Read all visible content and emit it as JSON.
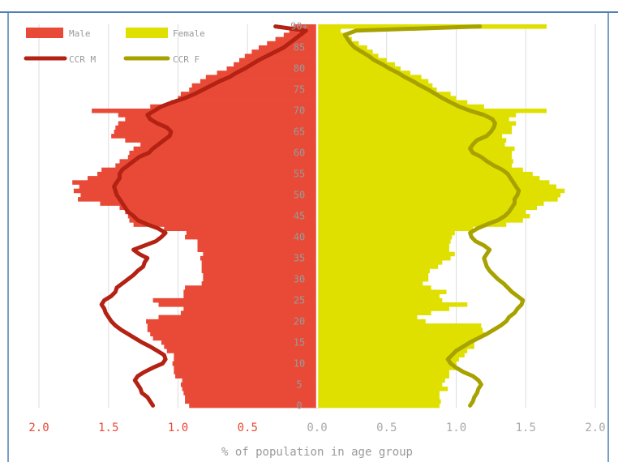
{
  "chart_data": {
    "type": "bar",
    "orientation": "horizontal-pyramid",
    "xlabel": "% of population in age group",
    "xlim": [
      0,
      2.0
    ],
    "x_ticks_left": [
      "2.0",
      "1.5",
      "1.0",
      "0.5",
      "0.0"
    ],
    "x_ticks_right": [
      "0.5",
      "1.0",
      "1.5",
      "2.0"
    ],
    "age_ticks": [
      "0",
      "5",
      "10",
      "15",
      "20",
      "25",
      "30",
      "35",
      "40",
      "45",
      "50",
      "55",
      "60",
      "65",
      "70",
      "75",
      "80",
      "85",
      "90+"
    ],
    "grid": true,
    "legend_position": "top-left",
    "legend": [
      {
        "key": "male",
        "label": "Male",
        "kind": "bar"
      },
      {
        "key": "female",
        "label": "Female",
        "kind": "bar"
      },
      {
        "key": "ccr_m",
        "label": "CCR M",
        "kind": "line"
      },
      {
        "key": "ccr_f",
        "label": "CCR F",
        "kind": "line"
      }
    ],
    "colors": {
      "male": "#e84a37",
      "female": "#dfe000",
      "ccr_m": "#b32212",
      "ccr_f": "#a7a200",
      "grid": "#dddddd",
      "left_ticks": "#e84a37",
      "right_ticks": "#a9a9a9",
      "center_line": "#ffffff",
      "frame": "#4f7fb5"
    },
    "ages": [
      0,
      1,
      2,
      3,
      4,
      5,
      6,
      7,
      8,
      9,
      10,
      11,
      12,
      13,
      14,
      15,
      16,
      17,
      18,
      19,
      20,
      21,
      22,
      23,
      24,
      25,
      26,
      27,
      28,
      29,
      30,
      31,
      32,
      33,
      34,
      35,
      36,
      37,
      38,
      39,
      40,
      41,
      42,
      43,
      44,
      45,
      46,
      47,
      48,
      49,
      50,
      51,
      52,
      53,
      54,
      55,
      56,
      57,
      58,
      59,
      60,
      61,
      62,
      63,
      64,
      65,
      66,
      67,
      68,
      69,
      70,
      71,
      72,
      73,
      74,
      75,
      76,
      77,
      78,
      79,
      80,
      81,
      82,
      83,
      84,
      85,
      86,
      87,
      88,
      89,
      90
    ],
    "series": [
      {
        "name": "Male",
        "values": [
          0.92,
          0.95,
          0.95,
          0.96,
          0.97,
          0.98,
          0.97,
          1.02,
          1.03,
          1.03,
          1.04,
          1.03,
          1.03,
          1.08,
          1.1,
          1.12,
          1.18,
          1.2,
          1.22,
          1.22,
          1.23,
          1.14,
          0.98,
          0.96,
          1.14,
          1.18,
          0.96,
          0.96,
          0.95,
          0.83,
          0.82,
          0.82,
          0.83,
          0.83,
          0.83,
          0.84,
          0.82,
          0.86,
          0.86,
          0.86,
          0.95,
          0.94,
          1.1,
          1.32,
          1.35,
          1.36,
          1.38,
          1.42,
          1.56,
          1.72,
          1.7,
          1.75,
          1.71,
          1.76,
          1.65,
          1.58,
          1.55,
          1.45,
          1.42,
          1.36,
          1.35,
          1.32,
          1.27,
          1.38,
          1.48,
          1.46,
          1.45,
          1.43,
          1.38,
          1.43,
          1.62,
          1.2,
          1.05,
          1.0,
          0.98,
          0.92,
          0.9,
          0.84,
          0.8,
          0.72,
          0.65,
          0.6,
          0.56,
          0.52,
          0.47,
          0.42,
          0.36,
          0.3,
          0.24,
          0.2,
          0.17
        ]
      },
      {
        "name": "Female",
        "values": [
          0.88,
          0.89,
          0.88,
          0.88,
          0.94,
          0.9,
          0.92,
          0.95,
          0.95,
          1.0,
          1.0,
          1.02,
          1.06,
          1.08,
          1.13,
          1.13,
          1.15,
          1.2,
          1.19,
          1.18,
          0.78,
          0.72,
          0.82,
          0.95,
          1.08,
          0.9,
          0.88,
          0.93,
          0.82,
          0.76,
          0.8,
          0.8,
          0.81,
          0.87,
          0.9,
          0.96,
          0.99,
          0.95,
          0.95,
          0.96,
          0.97,
          0.99,
          1.12,
          1.36,
          1.48,
          1.53,
          1.5,
          1.58,
          1.63,
          1.73,
          1.75,
          1.78,
          1.72,
          1.67,
          1.6,
          1.55,
          1.48,
          1.4,
          1.41,
          1.4,
          1.4,
          1.42,
          1.35,
          1.36,
          1.33,
          1.4,
          1.4,
          1.43,
          1.38,
          1.43,
          1.65,
          1.2,
          1.08,
          1.0,
          0.96,
          0.86,
          0.83,
          0.8,
          0.75,
          0.67,
          0.6,
          0.56,
          0.5,
          0.44,
          0.4,
          0.36,
          0.3,
          0.25,
          0.2,
          0.17,
          1.65
        ]
      },
      {
        "name": "CCR M",
        "values": [
          1.18,
          1.2,
          1.22,
          1.26,
          1.27,
          1.29,
          1.31,
          1.29,
          1.24,
          1.18,
          1.11,
          1.09,
          1.1,
          1.15,
          1.2,
          1.26,
          1.31,
          1.36,
          1.41,
          1.45,
          1.48,
          1.5,
          1.52,
          1.53,
          1.55,
          1.53,
          1.48,
          1.45,
          1.44,
          1.4,
          1.36,
          1.32,
          1.29,
          1.25,
          1.24,
          1.22,
          1.28,
          1.32,
          1.24,
          1.16,
          1.12,
          1.09,
          1.14,
          1.22,
          1.29,
          1.32,
          1.36,
          1.38,
          1.4,
          1.42,
          1.44,
          1.45,
          1.46,
          1.44,
          1.42,
          1.42,
          1.4,
          1.36,
          1.32,
          1.28,
          1.21,
          1.18,
          1.14,
          1.1,
          1.06,
          1.05,
          1.08,
          1.15,
          1.2,
          1.22,
          1.17,
          1.12,
          1.04,
          0.95,
          0.88,
          0.82,
          0.76,
          0.7,
          0.63,
          0.58,
          0.52,
          0.47,
          0.42,
          0.36,
          0.3,
          0.24,
          0.2,
          0.16,
          0.12,
          0.08,
          0.3
        ]
      },
      {
        "name": "CCR F",
        "values": [
          1.1,
          1.12,
          1.13,
          1.15,
          1.16,
          1.18,
          1.16,
          1.12,
          1.05,
          1.0,
          0.96,
          0.94,
          0.97,
          1.0,
          1.05,
          1.1,
          1.16,
          1.22,
          1.27,
          1.32,
          1.36,
          1.38,
          1.42,
          1.44,
          1.47,
          1.48,
          1.44,
          1.4,
          1.37,
          1.34,
          1.3,
          1.27,
          1.24,
          1.22,
          1.21,
          1.2,
          1.22,
          1.24,
          1.2,
          1.14,
          1.11,
          1.1,
          1.15,
          1.22,
          1.3,
          1.35,
          1.38,
          1.4,
          1.42,
          1.42,
          1.44,
          1.45,
          1.43,
          1.41,
          1.39,
          1.37,
          1.33,
          1.27,
          1.22,
          1.18,
          1.12,
          1.1,
          1.12,
          1.15,
          1.22,
          1.25,
          1.27,
          1.28,
          1.26,
          1.2,
          1.1,
          1.02,
          0.96,
          0.9,
          0.85,
          0.8,
          0.74,
          0.69,
          0.63,
          0.58,
          0.52,
          0.47,
          0.41,
          0.37,
          0.32,
          0.27,
          0.24,
          0.22,
          0.2,
          0.28,
          1.17
        ]
      }
    ]
  }
}
